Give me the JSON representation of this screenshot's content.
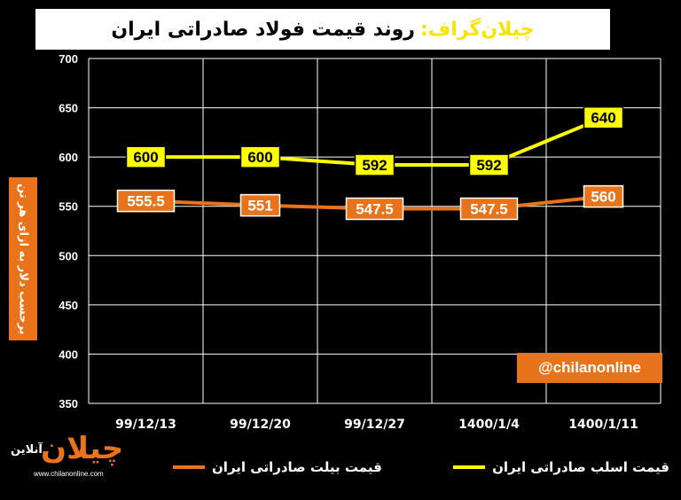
{
  "header": {
    "brand": "چیلان‌گراف:",
    "title": "روند قیمت فولاد صادراتی ایران"
  },
  "y_axis_label": "برحسب دلار به ازای هر تن",
  "watermark": "@chilanonline",
  "logo": {
    "word": "چیلان",
    "sub": "آنلاین",
    "url": "www.chilanonline.com"
  },
  "colors": {
    "yellow": "#ffff00",
    "orange": "#e8731a",
    "grid": "#ffffff"
  },
  "chart_data": {
    "type": "line",
    "categories": [
      "99/12/13",
      "99/12/20",
      "99/12/27",
      "1400/1/4",
      "1400/1/11"
    ],
    "ylim": [
      350,
      700
    ],
    "yticks": [
      350,
      400,
      450,
      500,
      550,
      600,
      650,
      700
    ],
    "grid": true,
    "legend_position": "bottom",
    "series": [
      {
        "name": "قیمت اسلب صادراتی ایران",
        "color": "#ffff00",
        "values": [
          600,
          600,
          592,
          592,
          640
        ],
        "labels": [
          "600",
          "600",
          "592",
          "592",
          "640"
        ]
      },
      {
        "name": "قیمت بیلت صادراتی ایران",
        "color": "#e8731a",
        "values": [
          555.5,
          551,
          547.5,
          547.5,
          560
        ],
        "labels": [
          "555.5",
          "551",
          "547.5",
          "547.5",
          "560"
        ]
      }
    ]
  }
}
